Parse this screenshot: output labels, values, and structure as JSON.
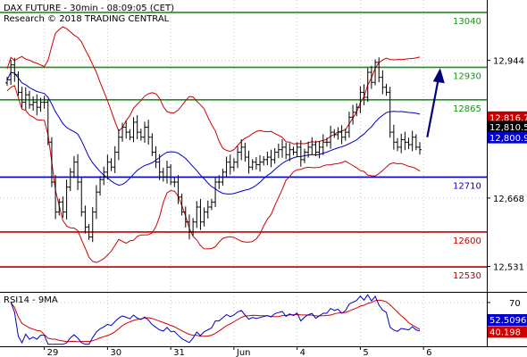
{
  "header": {
    "title": "DAX FUTURE - 30min - 08:09:05 (CET)",
    "subtitle": "Research © 2018 TRADING CENTRAL"
  },
  "colors": {
    "candle": "#000000",
    "bollinger": "#d00000",
    "moving_average": "#0000c8",
    "resistance": "#1f8f1f",
    "support": "#c00000",
    "pivot": "#0000c8",
    "arrow": "#00007a",
    "rsi_line": "#0000c8",
    "rsi_ma": "#d00000",
    "grid": "#c8c8c8"
  },
  "chart_data": [
    {
      "type": "candlestick",
      "title": "DAX FUTURE - 30min - 08:09:05 (CET)",
      "subtitle": "Research © 2018 TRADING CENTRAL",
      "ylim": [
        12480,
        13065
      ],
      "y_ticks": [
        12531,
        12668,
        12944
      ],
      "y_tick_labels": [
        "12,531",
        "12,668",
        "12,944"
      ],
      "x_ticks": [
        {
          "label": "29",
          "index": 10
        },
        {
          "label": "30",
          "index": 27
        },
        {
          "label": "31",
          "index": 44
        },
        {
          "label": "Jun",
          "index": 61
        },
        {
          "label": "4",
          "index": 78
        },
        {
          "label": "5",
          "index": 95
        },
        {
          "label": "6",
          "index": 112
        }
      ],
      "levels": [
        {
          "value": 13040,
          "label": "13040",
          "kind": "resistance"
        },
        {
          "value": 12930,
          "label": "12930",
          "kind": "resistance"
        },
        {
          "value": 12865,
          "label": "12865",
          "kind": "resistance"
        },
        {
          "value": 12710,
          "label": "12710",
          "kind": "pivot"
        },
        {
          "value": 12600,
          "label": "12600",
          "kind": "support"
        },
        {
          "value": 12530,
          "label": "12530",
          "kind": "support"
        }
      ],
      "price_tags": [
        {
          "value": 12816.7,
          "label": "12,816.7",
          "color": "#c00000"
        },
        {
          "value": 12810.5,
          "label": "12,810.5",
          "color": "#000000"
        },
        {
          "value": 12800.9,
          "label": "12,800.9",
          "color": "#0000c8"
        }
      ],
      "forecast_arrow": {
        "from": [
          113,
          12790
        ],
        "to": [
          116,
          12925
        ]
      },
      "closes": [
        12905,
        12935,
        12915,
        12880,
        12860,
        12875,
        12855,
        12860,
        12850,
        12860,
        12860,
        12780,
        12700,
        12640,
        12660,
        12640,
        12690,
        12720,
        12740,
        12700,
        12640,
        12610,
        12590,
        12640,
        12680,
        12705,
        12720,
        12740,
        12730,
        12760,
        12790,
        12810,
        12800,
        12790,
        12820,
        12800,
        12790,
        12810,
        12790,
        12760,
        12740,
        12720,
        12710,
        12730,
        12700,
        12700,
        12670,
        12640,
        12620,
        12600,
        12620,
        12650,
        12620,
        12640,
        12650,
        12660,
        12700,
        12700,
        12720,
        12740,
        12730,
        12740,
        12760,
        12770,
        12750,
        12730,
        12740,
        12735,
        12740,
        12745,
        12750,
        12745,
        12760,
        12765,
        12770,
        12755,
        12765,
        12760,
        12770,
        12745,
        12760,
        12770,
        12775,
        12760,
        12770,
        12780,
        12780,
        12800,
        12795,
        12800,
        12790,
        12800,
        12830,
        12840,
        12850,
        12880,
        12870,
        12920,
        12900,
        12940,
        12910,
        12890,
        12880,
        12800,
        12780,
        12770,
        12785,
        12780,
        12775,
        12790,
        12770,
        12765
      ],
      "rsi": {
        "title": "RSI14 - 9MA",
        "ylim": [
          25,
          80
        ],
        "y_ticks": [
          70
        ],
        "tags": [
          {
            "value": 52.5096,
            "label": "52.5096",
            "color": "#0000c8"
          },
          {
            "value": 40.198,
            "label": "40.198",
            "color": "#d00000"
          }
        ]
      }
    }
  ]
}
